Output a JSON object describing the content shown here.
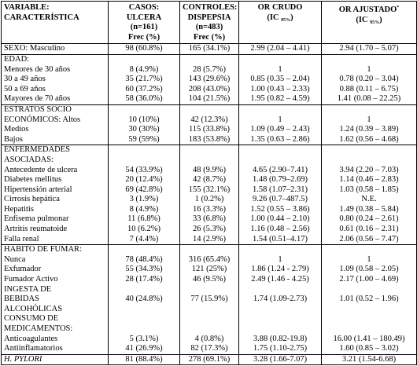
{
  "table": {
    "header": [
      {
        "lines": [
          "VARIABLE:",
          "CARACTERÍSTICA"
        ]
      },
      {
        "lines": [
          "CASOS:",
          "ULCERA",
          "(n=161)"
        ],
        "unit": "Frec (%)"
      },
      {
        "lines": [
          "CONTROLES:",
          "DISPEPSIA",
          "(n=483)"
        ],
        "unit": "Frec (%)"
      },
      {
        "lines": [
          "OR CRUDO",
          {
            "pre": "(IC ",
            "sub": "95%",
            "post": ")"
          }
        ]
      },
      {
        "lines": [
          {
            "pre": "OR AJUSTADO",
            "sup": "*"
          },
          {
            "pre": "(IC ",
            "sub": "95%",
            "post": ")"
          }
        ]
      }
    ],
    "sections": [
      {
        "rows": [
          [
            "SEXO: Masculino",
            "98 (60.8%)",
            "165 (34.1%)",
            "2.99 (2.04 – 4.41)",
            "2.94 (1.70 – 5.07)"
          ]
        ]
      },
      {
        "rows": [
          [
            "EDAD:"
          ],
          [
            "Menores de 30 años",
            "8 (4.9%)",
            "28 (5.7%)",
            "1",
            "1"
          ],
          [
            "30 a 49 años",
            "35 (21.7%)",
            "143 (29.6%)",
            "0.85 (0.35 – 2.04)",
            "0.78 (0.20 – 3.04)"
          ],
          [
            "50 a 69 años",
            "60 (37.2%)",
            "208 (43.0%)",
            "1.00 (0.43 – 2.33)",
            "0.88 (0.11 – 6.75)"
          ],
          [
            "Mayores de 70 años",
            "58 (36.0%)",
            "104 (21.5%)",
            "1.95 (0.82 – 4.59)",
            "1.41 (0.08 – 22.25)"
          ]
        ]
      },
      {
        "rows": [
          [
            "ESTRATOS SOCIO"
          ],
          [
            "ECONÓMICOS: Altos",
            "10 (10%)",
            "42 (12.3%)",
            "1",
            "1"
          ],
          [
            "Medios",
            "30 (30%)",
            "115 (33.8%)",
            "1.09 (0.49 – 2.43)",
            "1.24 (0.39 – 3.89)"
          ],
          [
            "Bajos",
            "59 (59%)",
            "183 (53.8%)",
            "1.35 (0.63 – 2.86)",
            "1.62 (0.56 – 4.68)"
          ]
        ]
      },
      {
        "rows": [
          [
            "ENFERMEDADES"
          ],
          [
            "ASOCIADAS:"
          ],
          [
            "Antecedente de ulcera",
            "54 (33.9%)",
            "48 (9.9%)",
            "4.65 (2.90–7.41)",
            "3.94 (2.20 – 7.03)"
          ],
          [
            "Diabetes mellitus",
            "20 (12.4%)",
            "42 (8.7%)",
            "1.48 (0.79–2.69)",
            "1.14 (0.46 – 2.83)"
          ],
          [
            "Hipertensión arterial",
            "69 (42.8%)",
            "155 (32.1%)",
            "1.58 (1.07–2.31)",
            "1.03 (0.58 – 1.85)"
          ],
          [
            "Cirrosis hepática",
            "3 (1.9%)",
            "1 (0.2%)",
            "9.26 (0.7–487.5)",
            "N.E."
          ],
          [
            "Hepatitis",
            "8 (4.9%)",
            "16 (3.3%)",
            "1.52 (0.55 – 3.86)",
            "1.49 (0.38 – 5.84)"
          ],
          [
            "Enfisema pulmonar",
            "11 (6.8%)",
            "33 (6.8%)",
            "1.00 (0.44 – 2.10)",
            "0.80 (0.24 – 2.61)"
          ],
          [
            "Artritis reumatoide",
            "10 (6.2%)",
            "26 (5.3%)",
            "1.16 (0.48 – 2.56)",
            "0.61 (0.16 – 2.31)"
          ],
          [
            "Falla renal",
            "7 (4.4%)",
            "14 (2.9%)",
            "1.54 (0.51–4.17)",
            "2.06 (0.56 – 7.47)"
          ]
        ]
      },
      {
        "rows": [
          [
            "HABITO DE FUMAR:"
          ],
          [
            "Nunca",
            "78 (48.4%)",
            "316 (65.4%)",
            "1",
            "1"
          ],
          [
            "Exfumador",
            "55 (34.3%)",
            "121 (25%)",
            "1.86 (1.24 - 2.79)",
            "1.09 (0.58 – 2.05)"
          ],
          [
            "Fumador Activo",
            "28 (17.4%)",
            "46 (9.5%)",
            "2.49 (1.46 - 4.25)",
            "2.17 (1.00 – 4.69)"
          ],
          [
            "INGESTA DE"
          ],
          [
            "BEBIDAS",
            "40 (24.8%)",
            "77 (15.9%)",
            "1.74 (1.09-2.73)",
            "1.01 (0.52 – 1.96)"
          ],
          [
            "ALCOHÓLICAS"
          ],
          [
            "CONSUMO DE"
          ],
          [
            "MEDICAMENTOS:"
          ],
          [
            "Anticoagulantes",
            "5 (3.1%)",
            "4 (0.8%)",
            "3.88 (0.82-19.8)",
            "16.00 (1.41 – 180.49)"
          ],
          [
            "Antiinflamatorios",
            "41 (26.9%)",
            "82 (17.3%)",
            "1.75 (1.10-2.75)",
            "1.60 (0.85 – 3.02)"
          ]
        ]
      },
      {
        "italic": true,
        "rows": [
          [
            "H. PYLORI",
            "81 (88.4%)",
            "278 (69.1%)",
            "3.28 (1.66-7.07)",
            "3.21 (1.54-6.68)"
          ]
        ]
      }
    ]
  }
}
